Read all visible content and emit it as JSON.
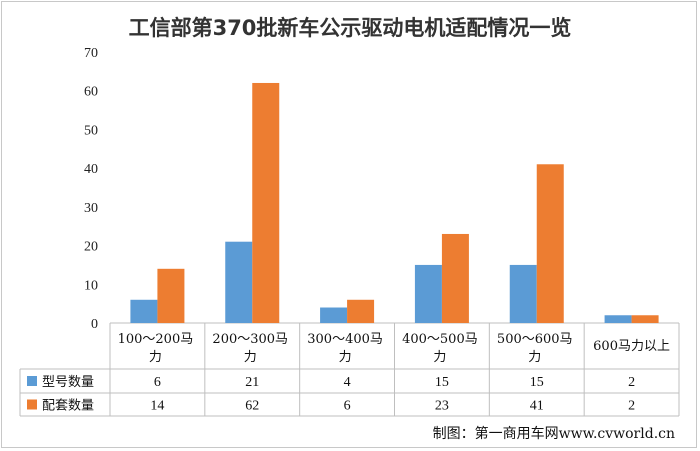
{
  "chart_data": {
    "type": "bar",
    "title": "工信部第370批新车公示驱动电机适配情况一览",
    "categories": [
      [
        "100～200马",
        "力"
      ],
      [
        "200～300马",
        "力"
      ],
      [
        "300～400马",
        "力"
      ],
      [
        "400～500马",
        "力"
      ],
      [
        "500～600马",
        "力"
      ],
      [
        "600马力以上"
      ]
    ],
    "series": [
      {
        "name": "型号数量",
        "color": "#5b9bd5",
        "values": [
          6,
          21,
          4,
          15,
          15,
          2
        ]
      },
      {
        "name": "配套数量",
        "color": "#ed7d31",
        "values": [
          14,
          62,
          6,
          23,
          41,
          2
        ]
      }
    ],
    "ylim": [
      0,
      70
    ],
    "yticks": [
      0,
      10,
      20,
      30,
      40,
      50,
      60,
      70
    ],
    "grid": false,
    "legend": "data-table"
  },
  "credit": "制图：第一商用车网www.cvworld.cn"
}
